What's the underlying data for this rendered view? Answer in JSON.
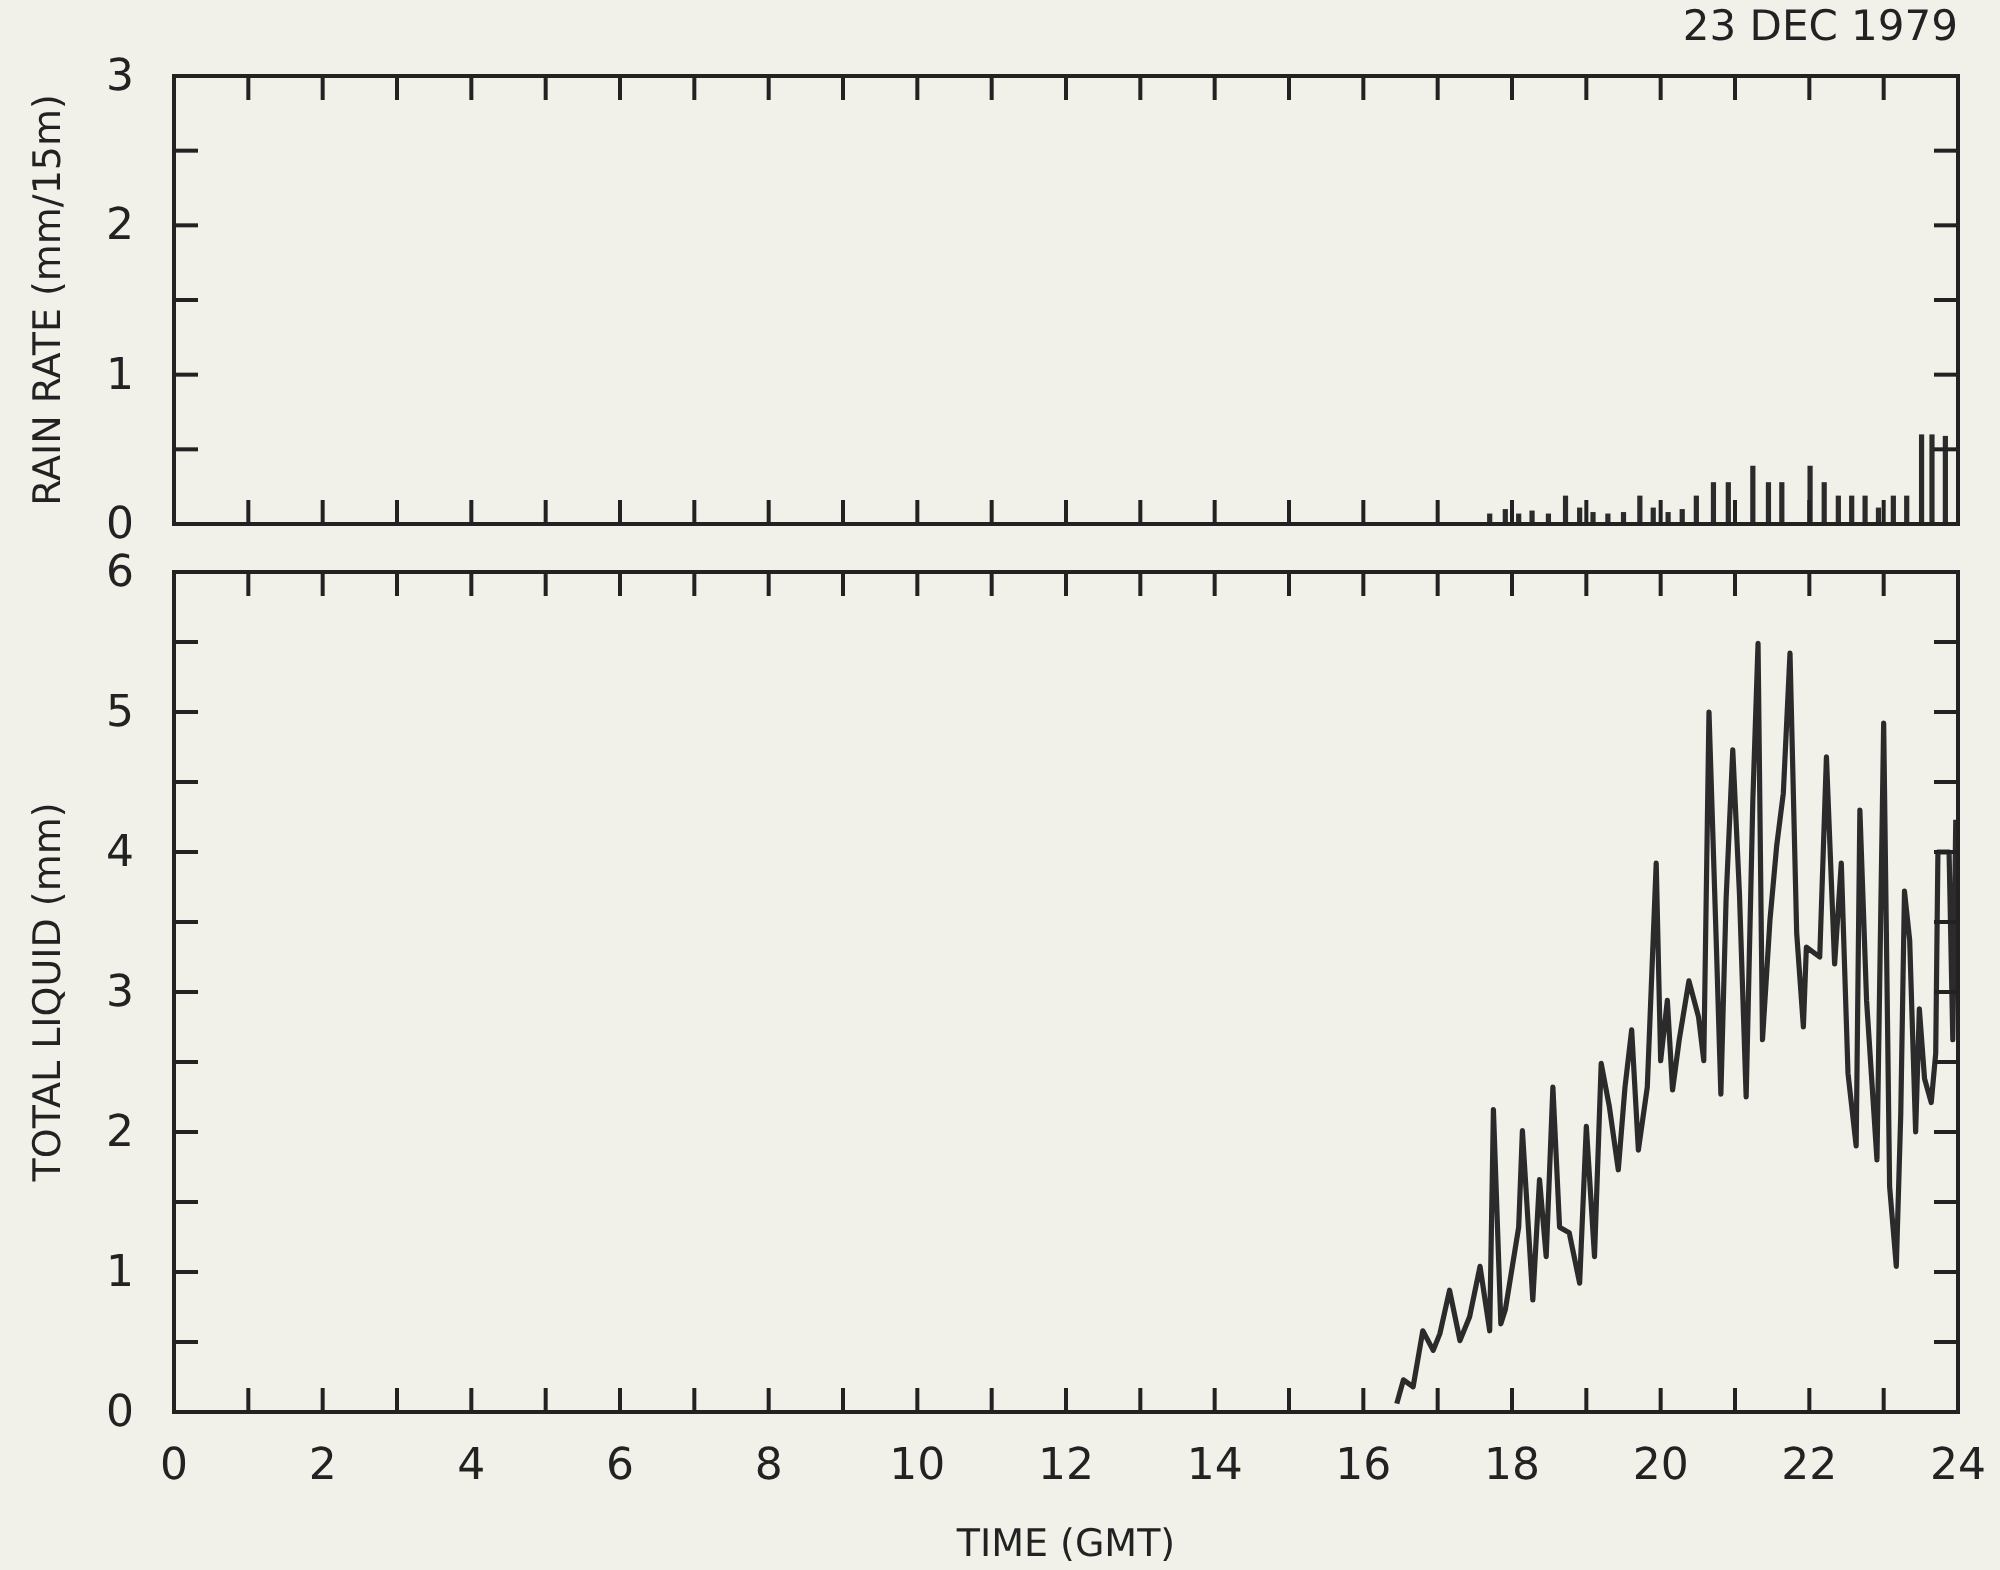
{
  "chart_data": [
    {
      "type": "bar",
      "title": "23 DEC 1979",
      "ylabel": "RAIN RATE (mm/15m)",
      "tick_labels": "y",
      "color": "#2b2b2b",
      "x": [
        17.7,
        17.91,
        18.09,
        18.27,
        18.49,
        18.72,
        18.91,
        19.09,
        19.29,
        19.5,
        19.72,
        19.9,
        20.1,
        20.29,
        20.48,
        20.71,
        20.91,
        21.24,
        21.45,
        21.63,
        22.01,
        22.2,
        22.39,
        22.57,
        22.75,
        22.93,
        23.13,
        23.31,
        23.51,
        23.65,
        23.83
      ],
      "values": [
        0.07,
        0.1,
        0.07,
        0.09,
        0.07,
        0.19,
        0.11,
        0.08,
        0.07,
        0.08,
        0.19,
        0.11,
        0.08,
        0.1,
        0.19,
        0.28,
        0.28,
        0.39,
        0.28,
        0.28,
        0.39,
        0.28,
        0.19,
        0.19,
        0.19,
        0.11,
        0.19,
        0.19,
        0.6,
        0.6,
        0.59
      ],
      "xlim": [
        0,
        24
      ],
      "xticks": [
        0,
        {
          "value": 1,
          "label": null
        },
        2,
        {
          "value": 3,
          "label": null
        },
        4,
        {
          "value": 5,
          "label": null
        },
        6,
        {
          "value": 7,
          "label": null
        },
        8,
        {
          "value": 9,
          "label": null
        },
        10,
        {
          "value": 11,
          "label": null
        },
        12,
        {
          "value": 13,
          "label": null
        },
        14,
        {
          "value": 15,
          "label": null
        },
        16,
        {
          "value": 17,
          "label": null
        },
        18,
        {
          "value": 19,
          "label": null
        },
        20,
        {
          "value": 21,
          "label": null
        },
        22,
        {
          "value": 23,
          "label": null
        },
        24
      ],
      "ylim": [
        0,
        3
      ],
      "yticks": [
        0,
        {
          "value": 0.5,
          "label": null
        },
        1,
        {
          "value": 1.5,
          "label": null
        },
        2,
        {
          "value": 2.5,
          "label": null
        },
        3
      ]
    },
    {
      "type": "line",
      "xlabel": "TIME (GMT)",
      "ylabel": "TOTAL LIQUID (mm)",
      "color": "#2b2b2b",
      "line_style": "solid",
      "x": [
        16.45,
        16.54,
        16.67,
        16.8,
        16.94,
        17.03,
        17.16,
        17.3,
        17.43,
        17.57,
        17.7,
        17.75,
        17.85,
        17.91,
        18.09,
        18.14,
        18.28,
        18.37,
        18.46,
        18.55,
        18.64,
        18.77,
        18.91,
        19.0,
        19.11,
        19.2,
        19.31,
        19.43,
        19.52,
        19.61,
        19.7,
        19.82,
        19.94,
        20.0,
        20.09,
        20.16,
        20.25,
        20.38,
        20.51,
        20.58,
        20.65,
        20.75,
        20.81,
        20.88,
        20.97,
        21.06,
        21.15,
        21.24,
        21.31,
        21.37,
        21.47,
        21.56,
        21.65,
        21.74,
        21.83,
        21.92,
        21.96,
        22.14,
        22.23,
        22.34,
        22.43,
        22.52,
        22.63,
        22.68,
        22.77,
        22.91,
        23.0,
        23.08,
        23.17,
        23.23,
        23.28,
        23.35,
        23.43,
        23.48,
        23.55,
        23.64,
        23.7,
        23.73,
        23.88,
        23.93,
        23.97
      ],
      "values": [
        0.06,
        0.23,
        0.18,
        0.58,
        0.44,
        0.56,
        0.87,
        0.51,
        0.68,
        1.04,
        0.58,
        2.16,
        0.63,
        0.73,
        1.32,
        2.01,
        0.8,
        1.66,
        1.11,
        2.32,
        1.32,
        1.28,
        0.92,
        2.04,
        1.11,
        2.49,
        2.18,
        1.73,
        2.32,
        2.73,
        1.87,
        2.32,
        3.92,
        2.51,
        2.94,
        2.3,
        2.66,
        3.08,
        2.82,
        2.51,
        5.0,
        3.32,
        2.27,
        3.66,
        4.73,
        3.7,
        2.25,
        4.37,
        5.49,
        2.66,
        3.51,
        4.04,
        4.42,
        5.42,
        3.42,
        2.75,
        3.32,
        3.25,
        4.68,
        3.2,
        3.92,
        2.42,
        1.9,
        4.3,
        2.94,
        1.8,
        4.92,
        1.61,
        1.04,
        2.13,
        3.72,
        3.37,
        2.0,
        2.88,
        2.38,
        2.21,
        2.56,
        4.0,
        4.0,
        2.66,
        4.23
      ],
      "xlim": [
        0,
        24
      ],
      "xticks": [
        0,
        {
          "value": 1,
          "label": null
        },
        2,
        {
          "value": 3,
          "label": null
        },
        4,
        {
          "value": 5,
          "label": null
        },
        6,
        {
          "value": 7,
          "label": null
        },
        8,
        {
          "value": 9,
          "label": null
        },
        10,
        {
          "value": 11,
          "label": null
        },
        12,
        {
          "value": 13,
          "label": null
        },
        14,
        {
          "value": 15,
          "label": null
        },
        16,
        {
          "value": 17,
          "label": null
        },
        18,
        {
          "value": 19,
          "label": null
        },
        20,
        {
          "value": 21,
          "label": null
        },
        22,
        {
          "value": 23,
          "label": null
        },
        24
      ],
      "ylim": [
        0,
        6
      ],
      "yticks": [
        0,
        {
          "value": 0.5,
          "label": null
        },
        1,
        {
          "value": 1.5,
          "label": null
        },
        2,
        {
          "value": 2.5,
          "label": null
        },
        3,
        {
          "value": 3.5,
          "label": null
        },
        4,
        {
          "value": 4.5,
          "label": null
        },
        5,
        {
          "value": 5.5,
          "label": null
        },
        6
      ]
    }
  ]
}
